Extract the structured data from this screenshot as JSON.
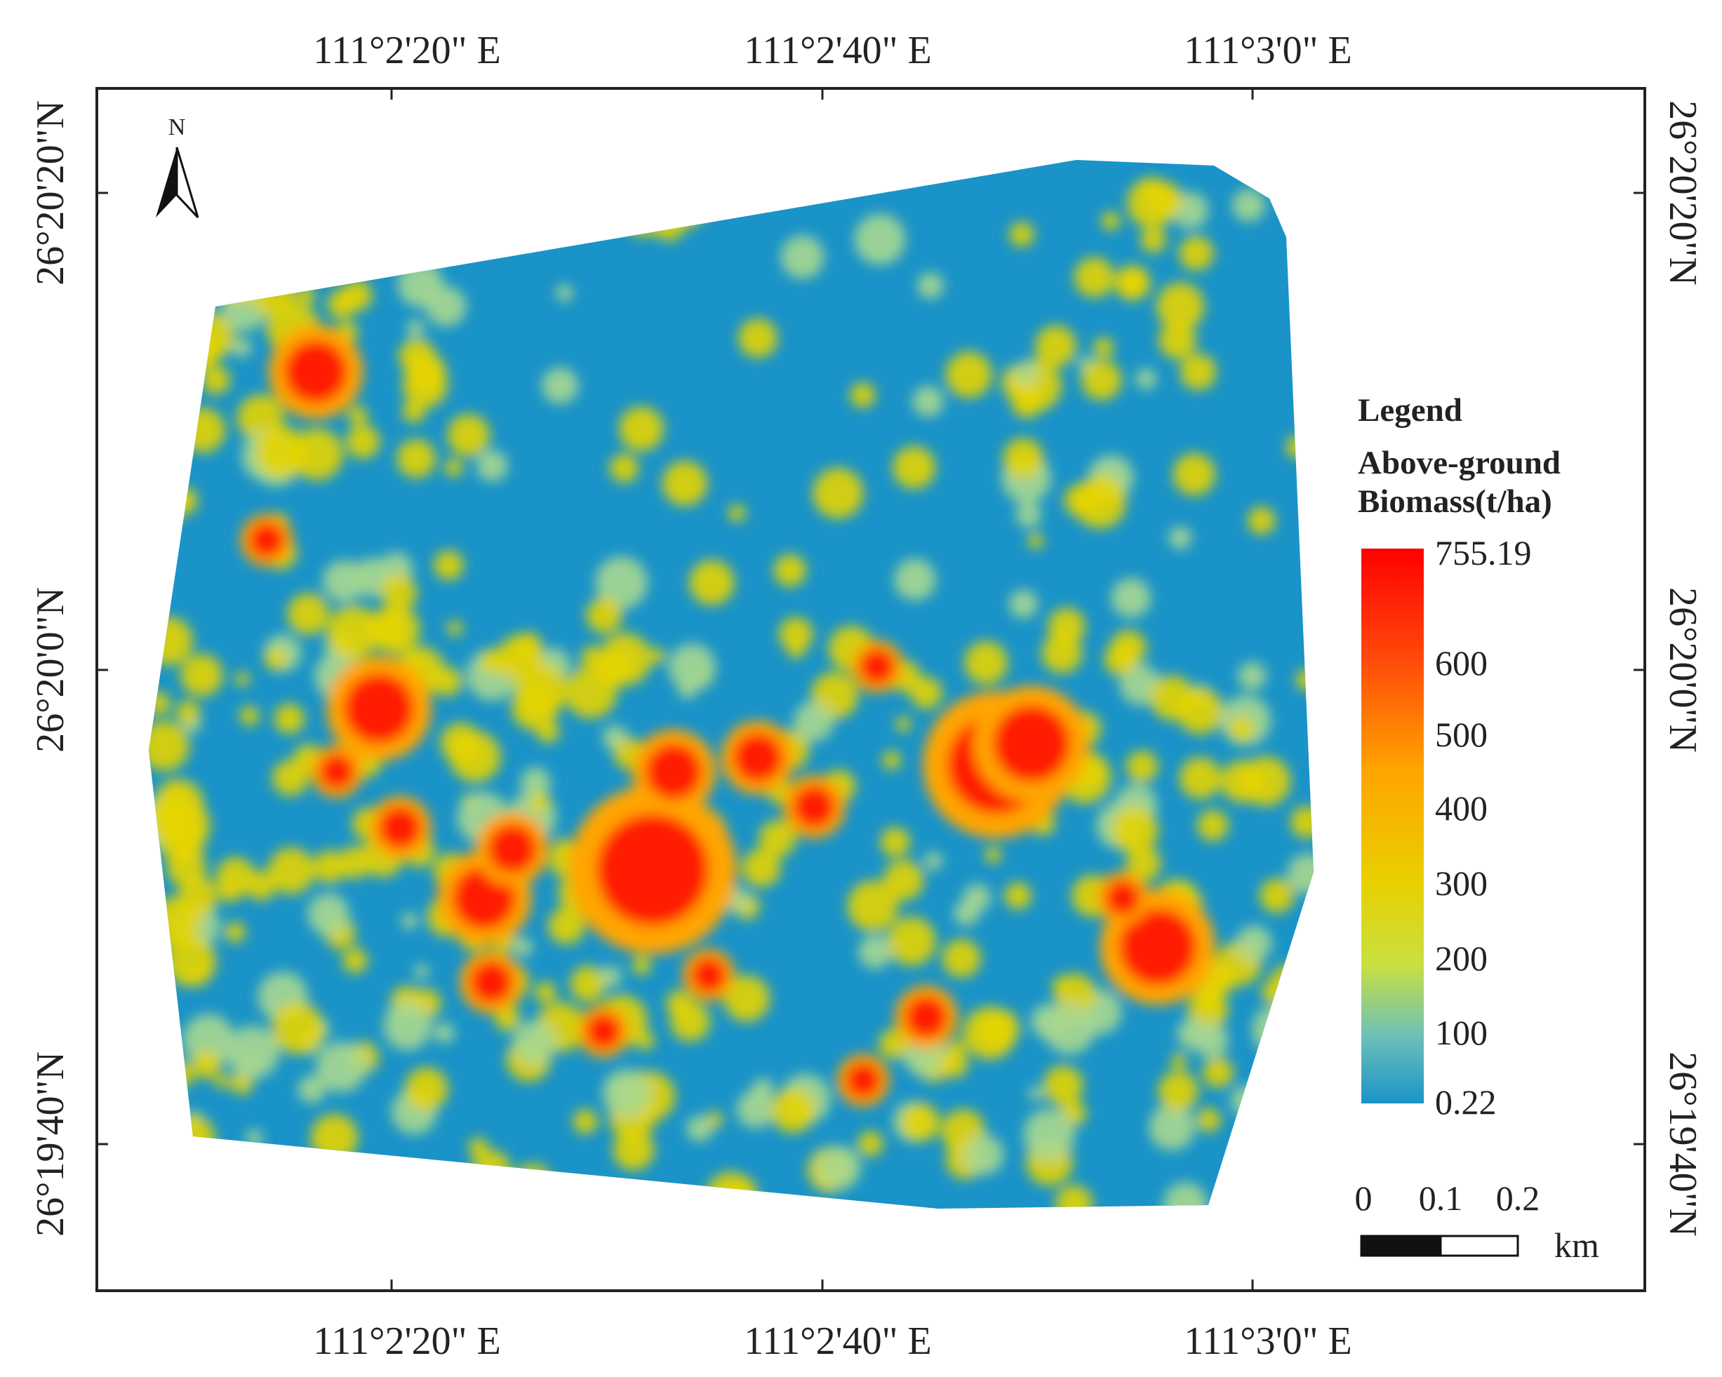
{
  "map": {
    "north_label": "N",
    "longitude_labels": [
      "111°2'20\" E",
      "111°2'40\" E",
      "111°3'0\" E"
    ],
    "latitude_labels": [
      "26°20'20\"N",
      "26°20'0\"N",
      "26°19'40\"N"
    ],
    "legend": {
      "title": "Legend",
      "subtitle_lines": [
        "Above-ground",
        "Biomass(t/ha)"
      ],
      "colorbar_labels": [
        "755.19",
        "600",
        "500",
        "400",
        "300",
        "200",
        "100",
        "0.22"
      ]
    },
    "scale_bar": {
      "labels": [
        "0",
        "0.1",
        "0.2"
      ],
      "unit": "km"
    }
  }
}
